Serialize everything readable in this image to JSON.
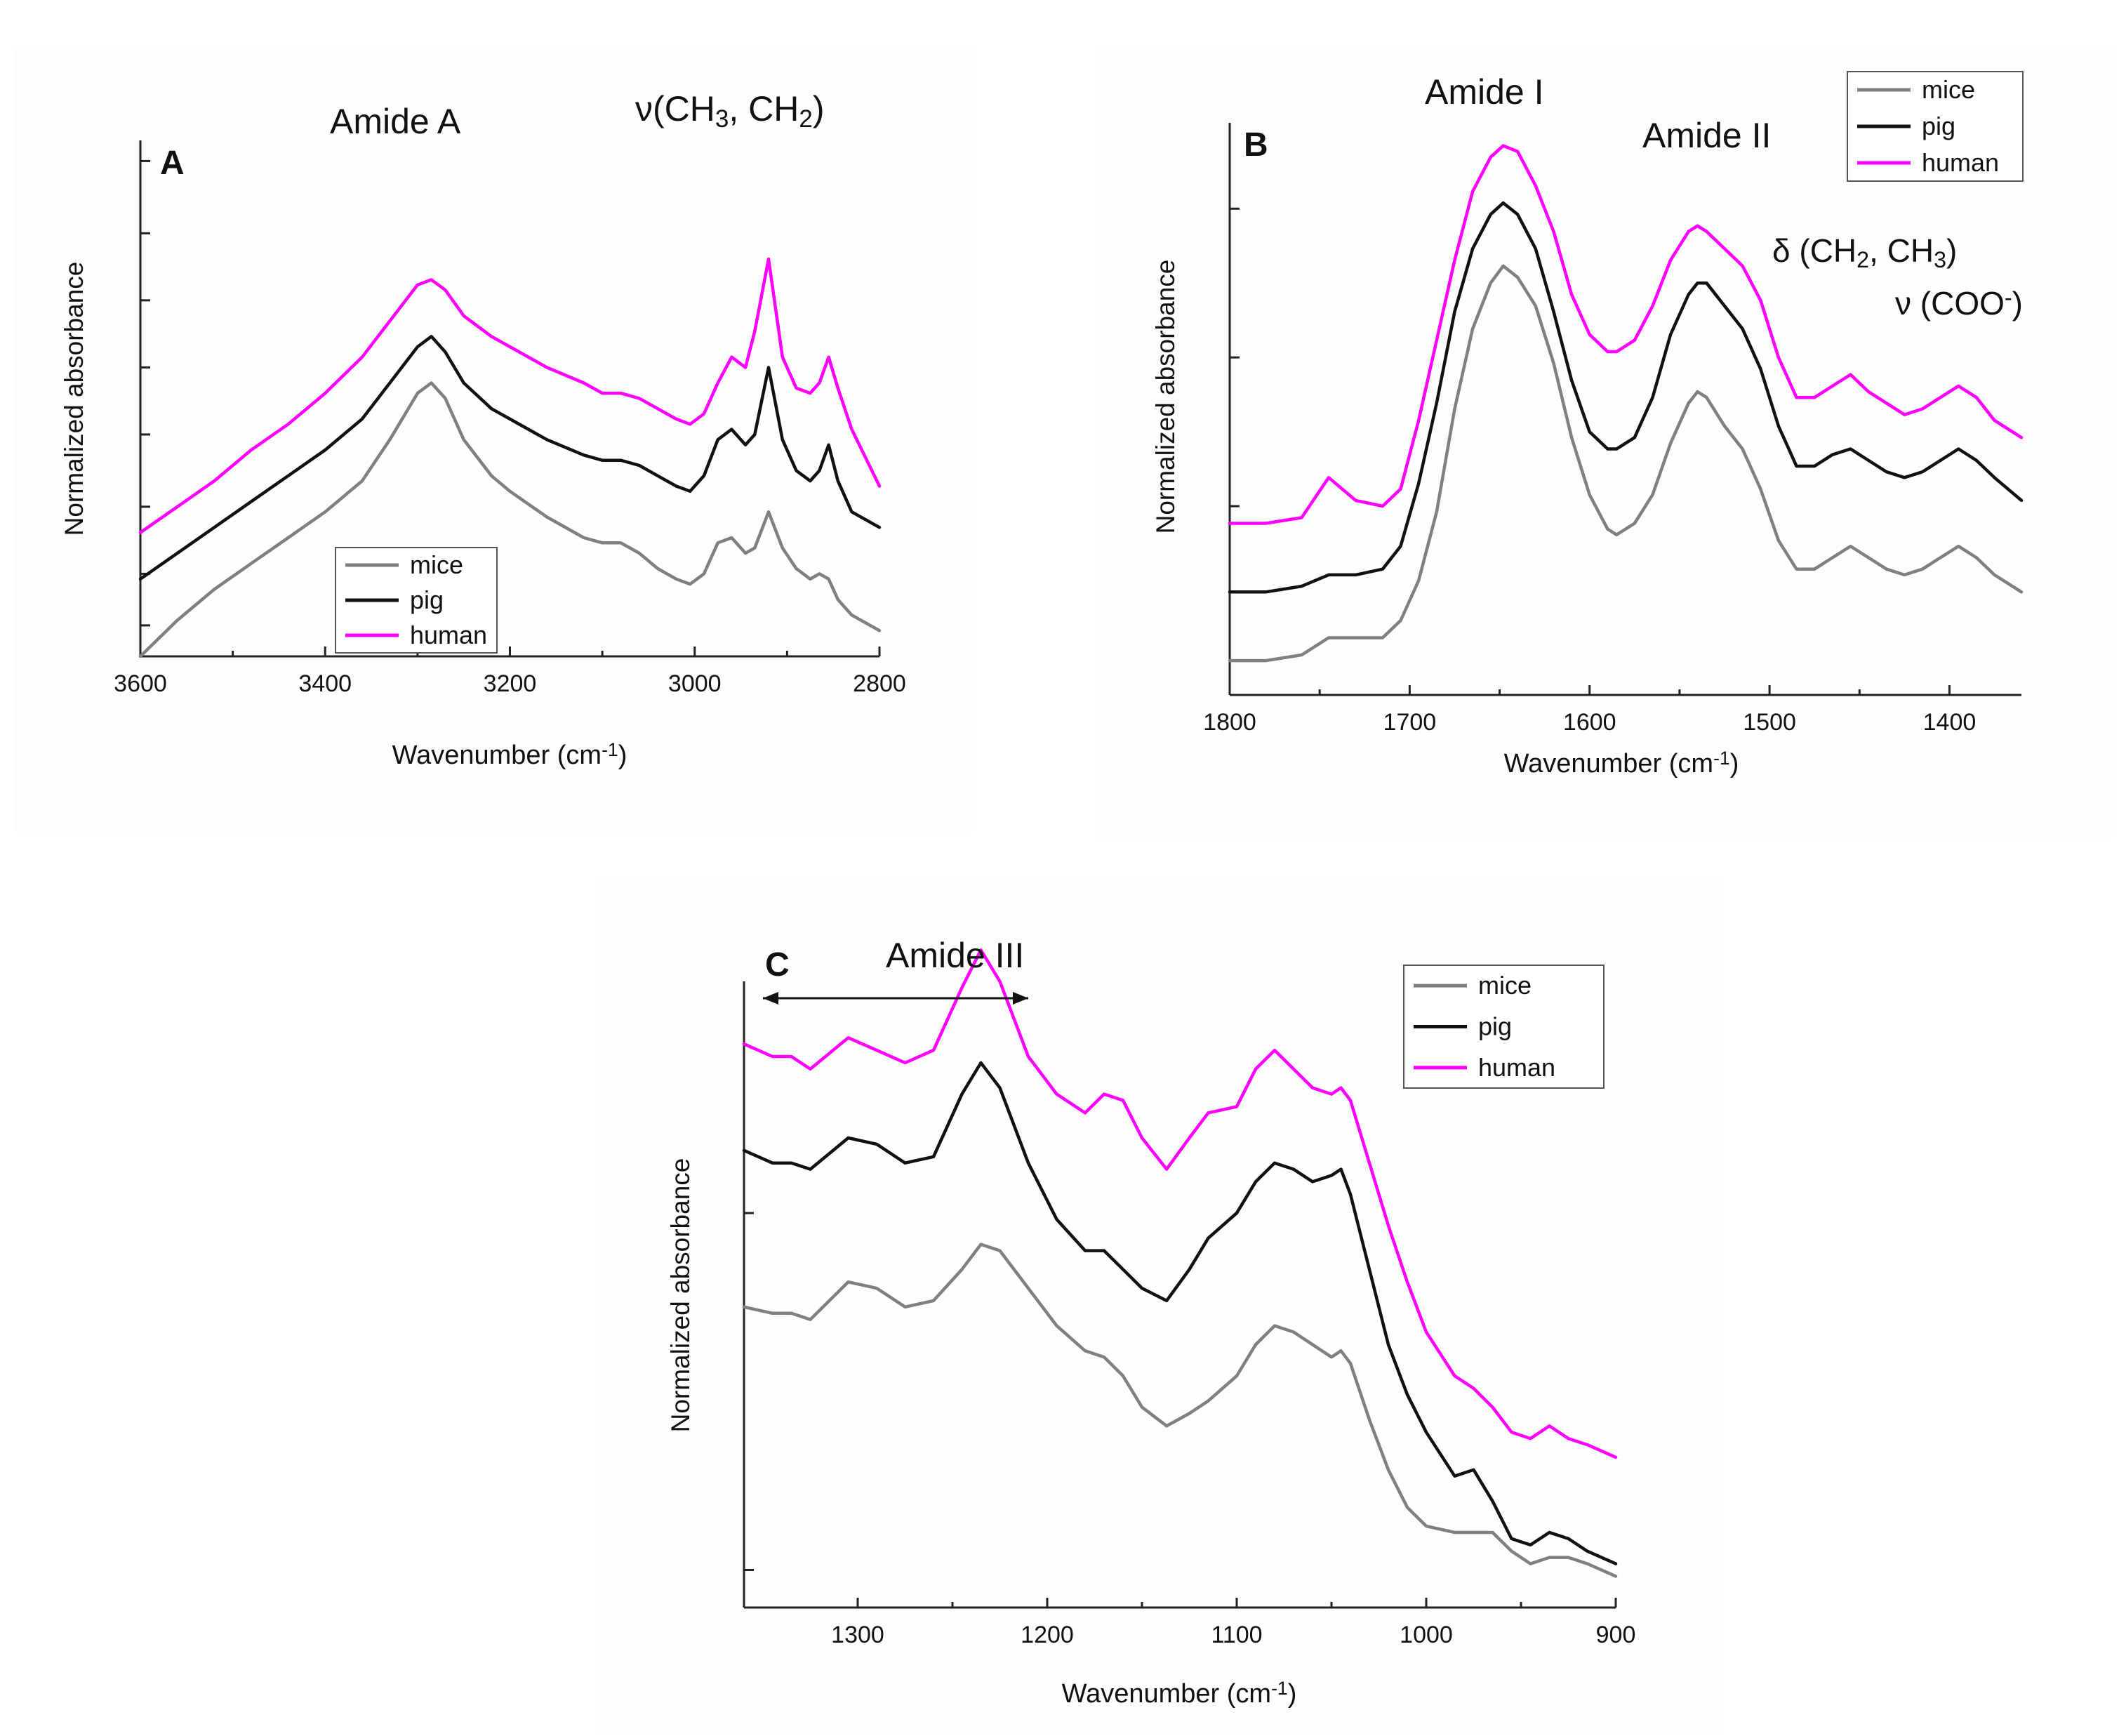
{
  "colors": {
    "mice": "#808080",
    "pig": "#111111",
    "human": "#ff00ff"
  },
  "chart_data": [
    {
      "id": "A",
      "type": "line",
      "panel_letter": "A",
      "xlabel": "Wavenumber (cm⁻¹)",
      "ylabel": "Normalized absorbance",
      "xlim": [
        3600,
        2800
      ],
      "ylim": [
        0,
        100
      ],
      "x_ticks": [
        3600,
        3400,
        3200,
        3000,
        2800
      ],
      "x_tick_labels": [
        "3600",
        "3400",
        "3200",
        "3000",
        "2800"
      ],
      "y_ticks": [
        6,
        16,
        29,
        43,
        56,
        69,
        82,
        96
      ],
      "annotations": [
        {
          "label": "Amide A",
          "x": 3250,
          "y": 95
        },
        {
          "label": "ν(CH₃, CH₂)",
          "x": 2920,
          "y": 103
        }
      ],
      "legend": {
        "position": "bottom-left",
        "entries": [
          "mice",
          "pig",
          "human"
        ]
      },
      "series": [
        {
          "name": "mice",
          "x": [
            3600,
            3560,
            3520,
            3480,
            3440,
            3400,
            3360,
            3330,
            3300,
            3285,
            3270,
            3250,
            3220,
            3200,
            3160,
            3120,
            3100,
            3080,
            3060,
            3040,
            3020,
            3005,
            2990,
            2975,
            2960,
            2945,
            2935,
            2920,
            2905,
            2890,
            2875,
            2865,
            2855,
            2845,
            2830,
            2800
          ],
          "y": [
            0,
            7,
            13,
            18,
            23,
            28,
            34,
            42,
            51,
            53,
            50,
            42,
            35,
            32,
            27,
            23,
            22,
            22,
            20,
            17,
            15,
            14,
            16,
            22,
            23,
            20,
            21,
            28,
            21,
            17,
            15,
            16,
            15,
            11,
            8,
            5
          ]
        },
        {
          "name": "pig",
          "x": [
            3600,
            3560,
            3520,
            3480,
            3440,
            3400,
            3360,
            3330,
            3300,
            3285,
            3270,
            3250,
            3220,
            3200,
            3160,
            3120,
            3100,
            3080,
            3060,
            3040,
            3020,
            3005,
            2990,
            2975,
            2960,
            2945,
            2935,
            2920,
            2905,
            2890,
            2875,
            2865,
            2855,
            2845,
            2830,
            2800
          ],
          "y": [
            15,
            20,
            25,
            30,
            35,
            40,
            46,
            53,
            60,
            62,
            59,
            53,
            48,
            46,
            42,
            39,
            38,
            38,
            37,
            35,
            33,
            32,
            35,
            42,
            44,
            41,
            43,
            56,
            42,
            36,
            34,
            36,
            41,
            34,
            28,
            25
          ]
        },
        {
          "name": "human",
          "x": [
            3600,
            3560,
            3520,
            3480,
            3440,
            3400,
            3360,
            3330,
            3300,
            3285,
            3270,
            3250,
            3220,
            3200,
            3160,
            3120,
            3100,
            3080,
            3060,
            3040,
            3020,
            3005,
            2990,
            2975,
            2960,
            2945,
            2935,
            2920,
            2905,
            2890,
            2875,
            2865,
            2855,
            2845,
            2830,
            2800
          ],
          "y": [
            24,
            29,
            34,
            40,
            45,
            51,
            58,
            65,
            72,
            73,
            71,
            66,
            62,
            60,
            56,
            53,
            51,
            51,
            50,
            48,
            46,
            45,
            47,
            53,
            58,
            56,
            63,
            77,
            58,
            52,
            51,
            53,
            58,
            52,
            44,
            33
          ]
        }
      ]
    },
    {
      "id": "B",
      "type": "line",
      "panel_letter": "B",
      "xlabel": "Wavenumber (cm⁻¹)",
      "ylabel": "Normalized absorbance",
      "xlim": [
        1800,
        1360
      ],
      "ylim": [
        0,
        100
      ],
      "x_ticks": [
        1800,
        1700,
        1600,
        1500,
        1400
      ],
      "x_tick_labels": [
        "1800",
        "1700",
        "1600",
        "1500",
        "1400"
      ],
      "y_ticks": [
        6,
        33,
        59,
        85
      ],
      "annotations": [
        {
          "label": "Amide I",
          "x": 1640,
          "y": 106
        },
        {
          "label": "Amide II",
          "x": 1530,
          "y": 95
        },
        {
          "label": "δ (CH₂, CH₃)",
          "x": 1430,
          "y": 72
        },
        {
          "label": "ν (COO⁻)",
          "x": 1390,
          "y": 63
        }
      ],
      "legend": {
        "position": "top-right",
        "entries": [
          "mice",
          "pig",
          "human"
        ]
      },
      "series": [
        {
          "name": "mice",
          "x": [
            1800,
            1780,
            1760,
            1745,
            1730,
            1715,
            1705,
            1695,
            1685,
            1675,
            1665,
            1655,
            1648,
            1640,
            1630,
            1620,
            1610,
            1600,
            1590,
            1585,
            1575,
            1565,
            1555,
            1545,
            1540,
            1535,
            1525,
            1515,
            1505,
            1495,
            1485,
            1475,
            1465,
            1455,
            1445,
            1435,
            1425,
            1415,
            1405,
            1395,
            1385,
            1375,
            1360
          ],
          "y": [
            6,
            6,
            7,
            10,
            10,
            10,
            13,
            20,
            32,
            50,
            64,
            72,
            75,
            73,
            68,
            58,
            45,
            35,
            29,
            28,
            30,
            35,
            44,
            51,
            53,
            52,
            47,
            43,
            36,
            27,
            22,
            22,
            24,
            26,
            24,
            22,
            21,
            22,
            24,
            26,
            24,
            21,
            18
          ]
        },
        {
          "name": "pig",
          "x": [
            1800,
            1780,
            1760,
            1745,
            1730,
            1715,
            1705,
            1695,
            1685,
            1675,
            1665,
            1655,
            1648,
            1640,
            1630,
            1620,
            1610,
            1600,
            1590,
            1585,
            1575,
            1565,
            1555,
            1545,
            1540,
            1535,
            1525,
            1515,
            1505,
            1495,
            1485,
            1475,
            1465,
            1455,
            1445,
            1435,
            1425,
            1415,
            1405,
            1395,
            1385,
            1375,
            1360
          ],
          "y": [
            18,
            18,
            19,
            21,
            21,
            22,
            26,
            37,
            51,
            67,
            78,
            84,
            86,
            84,
            78,
            67,
            55,
            46,
            43,
            43,
            45,
            52,
            63,
            70,
            72,
            72,
            68,
            64,
            57,
            47,
            40,
            40,
            42,
            43,
            41,
            39,
            38,
            39,
            41,
            43,
            41,
            38,
            34
          ]
        },
        {
          "name": "human",
          "x": [
            1800,
            1780,
            1760,
            1745,
            1730,
            1715,
            1705,
            1695,
            1685,
            1675,
            1665,
            1655,
            1648,
            1640,
            1630,
            1620,
            1610,
            1600,
            1590,
            1585,
            1575,
            1565,
            1555,
            1545,
            1540,
            1535,
            1525,
            1515,
            1505,
            1495,
            1485,
            1475,
            1465,
            1455,
            1445,
            1435,
            1425,
            1415,
            1405,
            1395,
            1385,
            1375,
            1360
          ],
          "y": [
            30,
            30,
            31,
            38,
            34,
            33,
            36,
            48,
            62,
            76,
            88,
            94,
            96,
            95,
            89,
            81,
            70,
            63,
            60,
            60,
            62,
            68,
            76,
            81,
            82,
            81,
            78,
            75,
            69,
            59,
            52,
            52,
            54,
            56,
            53,
            51,
            49,
            50,
            52,
            54,
            52,
            48,
            45
          ]
        }
      ]
    },
    {
      "id": "C",
      "type": "line",
      "panel_letter": "C",
      "xlabel": "Wavenumber (cm⁻¹)",
      "ylabel": "Normalized absorbance",
      "xlim": [
        1360,
        900
      ],
      "ylim": [
        0,
        100
      ],
      "x_ticks": [
        1300,
        1200,
        1100,
        1000,
        900
      ],
      "x_tick_labels": [
        "1300",
        "1200",
        "1100",
        "1000",
        "900"
      ],
      "y_ticks": [
        6,
        63
      ],
      "annotations": [
        {
          "label": "Amide III",
          "x": 1235,
          "y": 110
        }
      ],
      "range_arrow": {
        "from": 1350,
        "to": 1210
      },
      "legend": {
        "position": "top-right",
        "entries": [
          "mice",
          "pig",
          "human"
        ]
      },
      "series": [
        {
          "name": "mice",
          "x": [
            1360,
            1345,
            1335,
            1325,
            1305,
            1290,
            1275,
            1260,
            1245,
            1235,
            1225,
            1210,
            1195,
            1180,
            1170,
            1160,
            1150,
            1137,
            1125,
            1115,
            1100,
            1090,
            1080,
            1070,
            1060,
            1050,
            1045,
            1040,
            1030,
            1020,
            1010,
            1000,
            985,
            975,
            965,
            955,
            945,
            935,
            925,
            915,
            900
          ],
          "y": [
            48,
            47,
            47,
            46,
            52,
            51,
            48,
            49,
            54,
            58,
            57,
            51,
            45,
            41,
            40,
            37,
            32,
            29,
            31,
            33,
            37,
            42,
            45,
            44,
            42,
            40,
            41,
            39,
            30,
            22,
            16,
            13,
            12,
            12,
            12,
            9,
            7,
            8,
            8,
            7,
            5
          ]
        },
        {
          "name": "pig",
          "x": [
            1360,
            1345,
            1335,
            1325,
            1305,
            1290,
            1275,
            1260,
            1245,
            1235,
            1225,
            1210,
            1195,
            1180,
            1170,
            1160,
            1150,
            1137,
            1125,
            1115,
            1100,
            1090,
            1080,
            1070,
            1060,
            1050,
            1045,
            1040,
            1030,
            1020,
            1010,
            1000,
            985,
            975,
            965,
            955,
            945,
            935,
            925,
            915,
            900
          ],
          "y": [
            73,
            71,
            71,
            70,
            75,
            74,
            71,
            72,
            82,
            87,
            83,
            71,
            62,
            57,
            57,
            54,
            51,
            49,
            54,
            59,
            63,
            68,
            71,
            70,
            68,
            69,
            70,
            66,
            54,
            42,
            34,
            28,
            21,
            22,
            17,
            11,
            10,
            12,
            11,
            9,
            7
          ]
        },
        {
          "name": "human",
          "x": [
            1360,
            1345,
            1335,
            1325,
            1305,
            1290,
            1275,
            1260,
            1245,
            1235,
            1225,
            1210,
            1195,
            1180,
            1170,
            1160,
            1150,
            1137,
            1125,
            1115,
            1100,
            1090,
            1080,
            1070,
            1060,
            1050,
            1045,
            1040,
            1030,
            1020,
            1010,
            1000,
            985,
            975,
            965,
            955,
            945,
            935,
            925,
            915,
            900
          ],
          "y": [
            90,
            88,
            88,
            86,
            91,
            89,
            87,
            89,
            99,
            105,
            100,
            88,
            82,
            79,
            82,
            81,
            75,
            70,
            75,
            79,
            80,
            86,
            89,
            86,
            83,
            82,
            83,
            81,
            71,
            61,
            52,
            44,
            37,
            35,
            32,
            28,
            27,
            29,
            27,
            26,
            24
          ]
        }
      ]
    }
  ]
}
